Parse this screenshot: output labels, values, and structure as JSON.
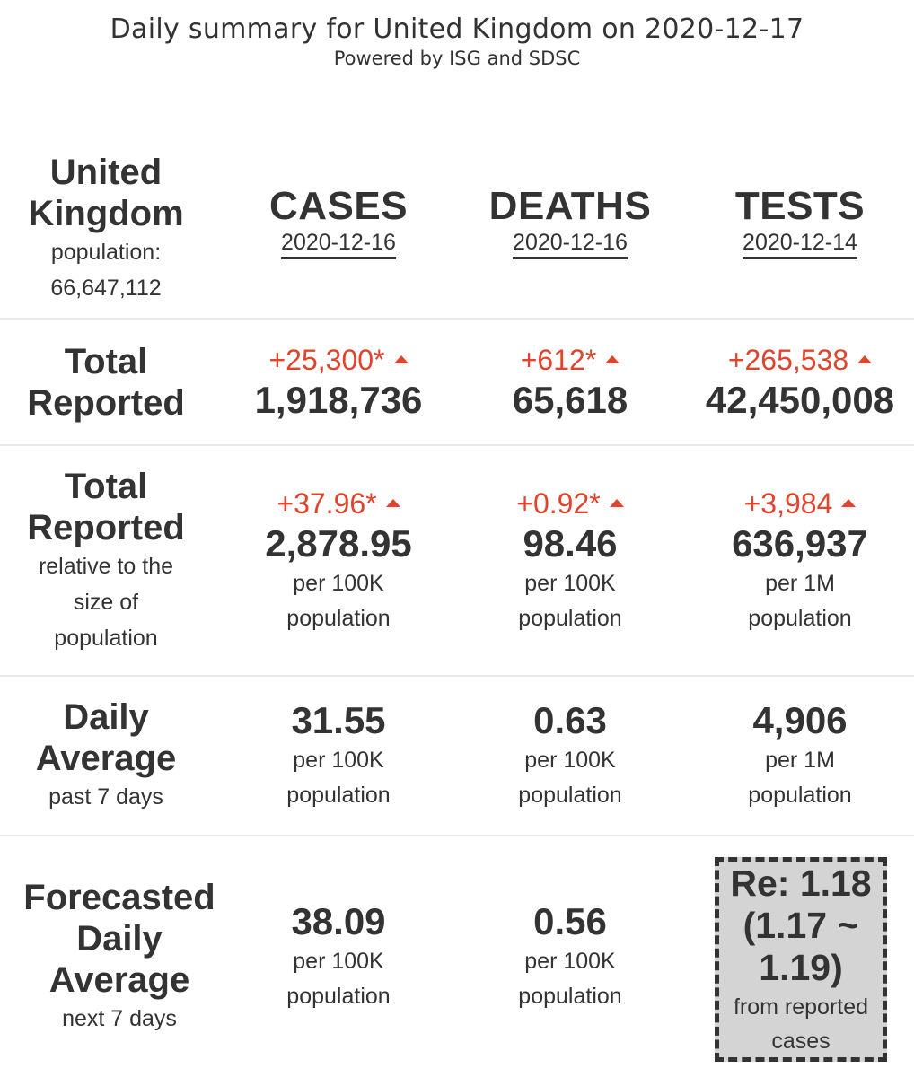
{
  "header": {
    "title": "Daily summary for United Kingdom on 2020-12-17",
    "subtitle": "Powered by ISG and SDSC"
  },
  "country": {
    "name_line1": "United",
    "name_line2": "Kingdom",
    "population_label": "population:",
    "population_value": "66,647,112"
  },
  "metrics": [
    {
      "name": "CASES",
      "date": "2020-12-16"
    },
    {
      "name": "DEATHS",
      "date": "2020-12-16"
    },
    {
      "name": "TESTS",
      "date": "2020-12-14"
    }
  ],
  "total_reported": {
    "label_line1": "Total",
    "label_line2": "Reported",
    "cases": {
      "delta": "+25,300*",
      "value": "1,918,736"
    },
    "deaths": {
      "delta": "+612*",
      "value": "65,618"
    },
    "tests": {
      "delta": "+265,538",
      "value": "42,450,008"
    }
  },
  "relative": {
    "label_line1": "Total",
    "label_line2": "Reported",
    "sub_line1": "relative to the",
    "sub_line2": "size of",
    "sub_line3": "population",
    "cases": {
      "delta": "+37.96*",
      "value": "2,878.95",
      "unit_line1": "per 100K",
      "unit_line2": "population"
    },
    "deaths": {
      "delta": "+0.92*",
      "value": "98.46",
      "unit_line1": "per 100K",
      "unit_line2": "population"
    },
    "tests": {
      "delta": "+3,984",
      "value": "636,937",
      "unit_line1": "per 1M",
      "unit_line2": "population"
    }
  },
  "daily_average": {
    "label_line1": "Daily",
    "label_line2": "Average",
    "sub": "past 7 days",
    "cases": {
      "value": "31.55",
      "unit_line1": "per 100K",
      "unit_line2": "population"
    },
    "deaths": {
      "value": "0.63",
      "unit_line1": "per 100K",
      "unit_line2": "population"
    },
    "tests": {
      "value": "4,906",
      "unit_line1": "per 1M",
      "unit_line2": "population"
    }
  },
  "forecast": {
    "label_line1": "Forecasted",
    "label_line2": "Daily",
    "label_line3": "Average",
    "sub": "next 7 days",
    "cases": {
      "value": "38.09",
      "unit_line1": "per 100K",
      "unit_line2": "population"
    },
    "deaths": {
      "value": "0.56",
      "unit_line1": "per 100K",
      "unit_line2": "population"
    },
    "re": {
      "line1": "Re: 1.18",
      "line2": "(1.17 ~",
      "line3": "1.19)",
      "sub_line1": "from reported",
      "sub_line2": "cases"
    }
  },
  "colors": {
    "increase": "#e0442c",
    "text": "#333333",
    "re_box_bg": "#d4d4d4",
    "divider": "#e8e8e8"
  },
  "icons": {
    "increase": "triangle-up-icon"
  }
}
